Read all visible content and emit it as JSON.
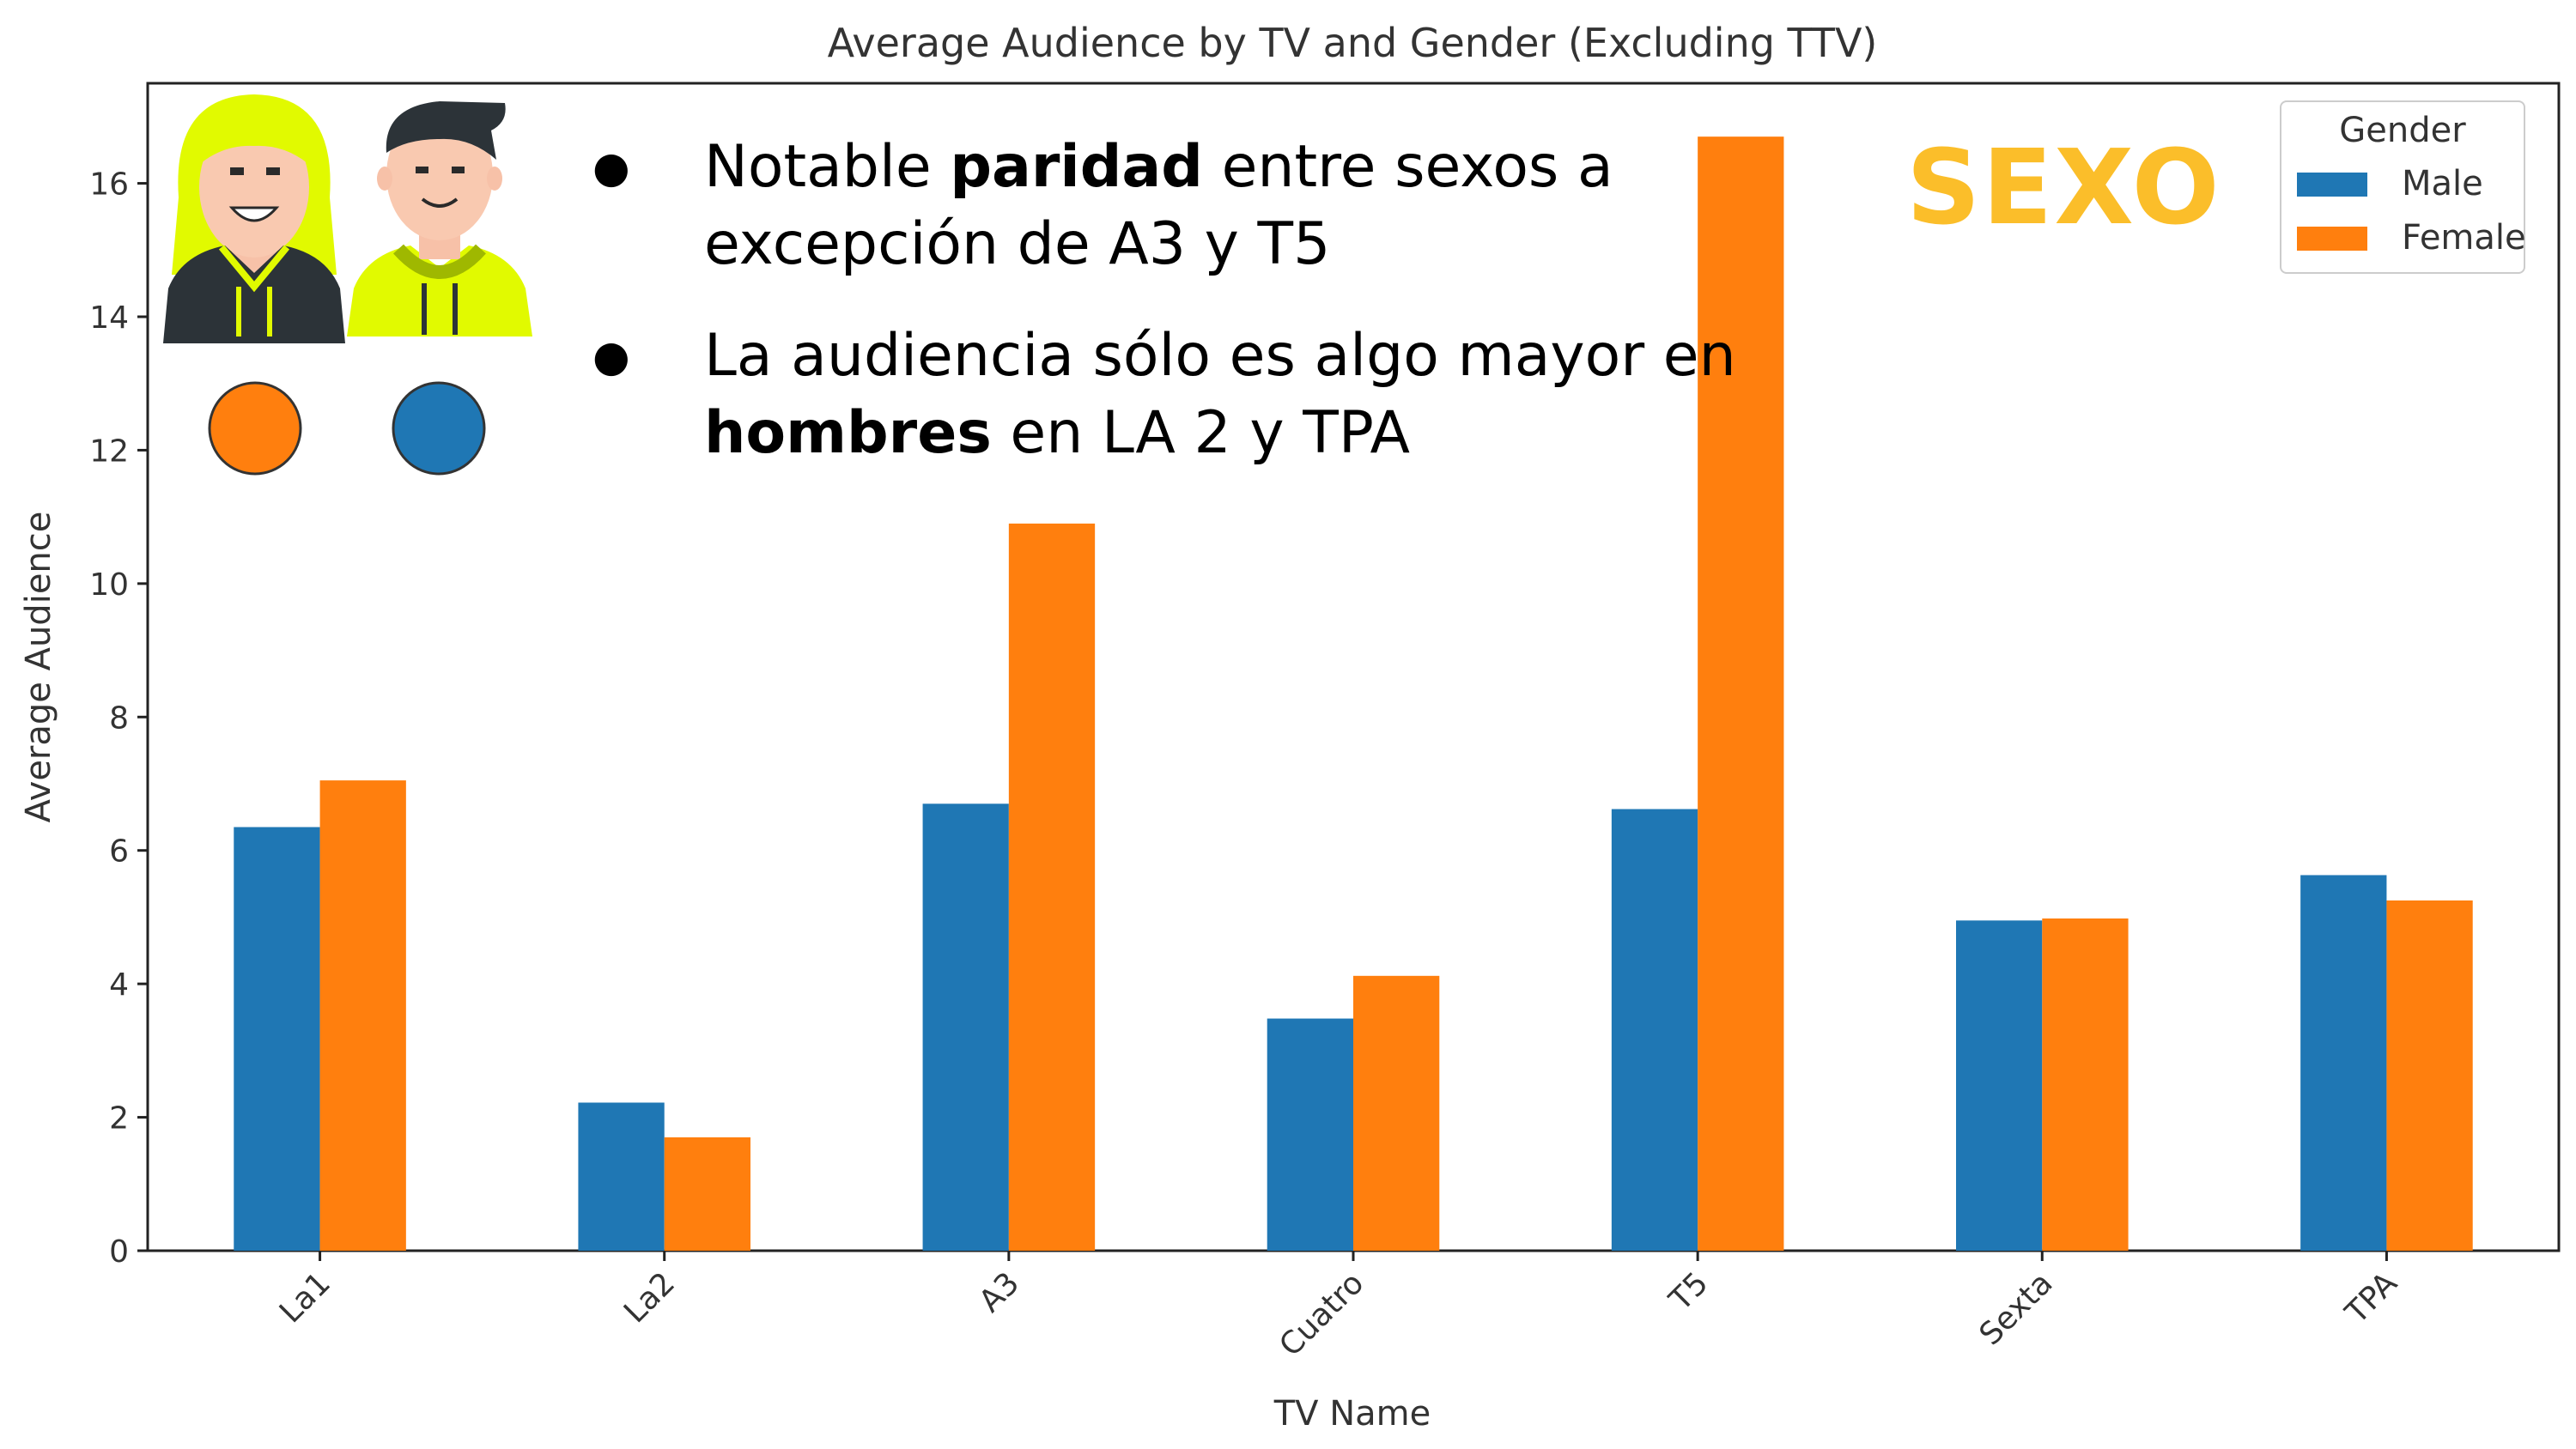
{
  "chart_data": {
    "type": "bar",
    "title": "Average Audience by TV and Gender (Excluding TTV)",
    "xlabel": "TV Name",
    "ylabel": "Average Audience",
    "categories": [
      "La1",
      "La2",
      "A3",
      "Cuatro",
      "T5",
      "Sexta",
      "TPA"
    ],
    "series": [
      {
        "name": "Male",
        "color": "#1f77b4",
        "values": [
          6.35,
          2.22,
          6.7,
          3.48,
          6.62,
          4.95,
          5.63
        ]
      },
      {
        "name": "Female",
        "color": "#ff7f0e",
        "values": [
          7.05,
          1.7,
          10.9,
          4.12,
          16.7,
          4.98,
          5.25
        ]
      }
    ],
    "ylim": [
      0,
      17.5
    ],
    "yticks": [
      0,
      2,
      4,
      6,
      8,
      10,
      12,
      14,
      16
    ],
    "grid": false,
    "legend": {
      "title": "Gender",
      "placement": "top-right"
    }
  },
  "annotations": {
    "bullets": [
      {
        "symbol": "●",
        "pre": "Notable ",
        "bold": "paridad",
        "post": " entre sexos a excepción de A3 y T5"
      },
      {
        "symbol": "●",
        "pre": "La audiencia sólo es algo  mayor en ",
        "bold": "hombres",
        "post": " en LA 2 y TPA"
      }
    ],
    "highlight": "SEXO",
    "highlight_color": "#fbbe2a",
    "icons": [
      "woman-avatar-icon",
      "man-avatar-icon"
    ],
    "marker_colors": [
      "#ff7f0e",
      "#1f77b4"
    ]
  }
}
